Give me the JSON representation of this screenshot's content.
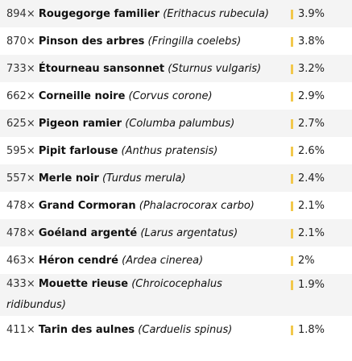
{
  "theme": {
    "bar_color": "#f2c84b",
    "row_alt_bg": "#f4f4f4"
  },
  "rows": [
    {
      "count": "894×",
      "name": "Rougegorge familier",
      "latin": "(Erithacus rubecula)",
      "percent": "3.9%"
    },
    {
      "count": "870×",
      "name": "Pinson des arbres",
      "latin": "(Fringilla coelebs)",
      "percent": "3.8%"
    },
    {
      "count": "733×",
      "name": "Étourneau sansonnet",
      "latin": "(Sturnus vulgaris)",
      "percent": "3.2%"
    },
    {
      "count": "662×",
      "name": "Corneille noire",
      "latin": "(Corvus corone)",
      "percent": "2.9%"
    },
    {
      "count": "625×",
      "name": "Pigeon ramier",
      "latin": "(Columba palumbus)",
      "percent": "2.7%"
    },
    {
      "count": "595×",
      "name": "Pipit farlouse",
      "latin": "(Anthus pratensis)",
      "percent": "2.6%"
    },
    {
      "count": "557×",
      "name": "Merle noir",
      "latin": "(Turdus merula)",
      "percent": "2.4%"
    },
    {
      "count": "478×",
      "name": "Grand Cormoran",
      "latin": "(Phalacrocorax carbo)",
      "percent": "2.1%"
    },
    {
      "count": "478×",
      "name": "Goéland argenté",
      "latin": "(Larus argentatus)",
      "percent": "2.1%"
    },
    {
      "count": "463×",
      "name": "Héron cendré",
      "latin": "(Ardea cinerea)",
      "percent": "2%"
    },
    {
      "count": "433×",
      "name": "Mouette rieuse",
      "latin": "(Chroicocephalus ridibundus)",
      "percent": "1.9%"
    },
    {
      "count": "411×",
      "name": "Tarin des aulnes",
      "latin": "(Carduelis spinus)",
      "percent": "1.8%"
    }
  ]
}
